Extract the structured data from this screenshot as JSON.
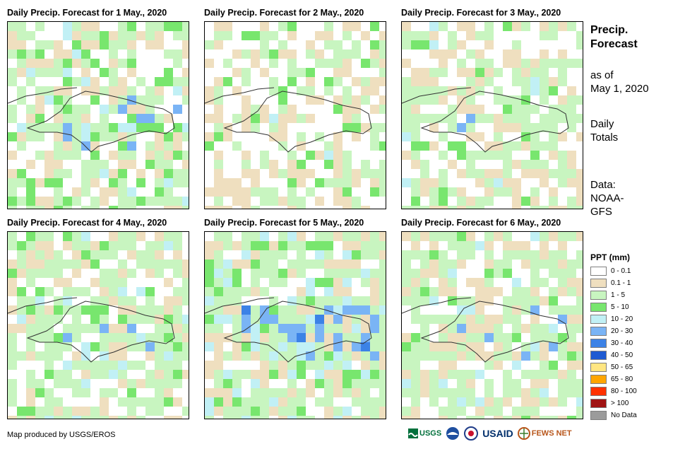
{
  "panels": [
    {
      "title": "Daily Precip. Forecast for 1 May., 2020"
    },
    {
      "title": "Daily Precip. Forecast for 2 May., 2020"
    },
    {
      "title": "Daily Precip. Forecast for 3 May., 2020"
    },
    {
      "title": "Daily Precip. Forecast for 4 May., 2020"
    },
    {
      "title": "Daily Precip. Forecast for 5 May., 2020"
    },
    {
      "title": "Daily Precip. Forecast for 6 May., 2020"
    }
  ],
  "sidebar": {
    "title_line1": "Precip.",
    "title_line2": "Forecast",
    "asof_line1": "as of",
    "asof_line2": "May 1, 2020",
    "totals_line1": "Daily",
    "totals_line2": "Totals",
    "data_line1": "Data:",
    "data_line2": "NOAA-",
    "data_line3": "GFS"
  },
  "legend": {
    "title": "PPT (mm)",
    "items": [
      {
        "label": "0 - 0.1",
        "color": "#ffffff"
      },
      {
        "label": "0.1 - 1",
        "color": "#efdfbf"
      },
      {
        "label": "1 - 5",
        "color": "#c8f5c0"
      },
      {
        "label": "5 - 10",
        "color": "#78e66e"
      },
      {
        "label": "10 - 20",
        "color": "#c1f0f5"
      },
      {
        "label": "20 - 30",
        "color": "#7ab4f5"
      },
      {
        "label": "30 - 40",
        "color": "#3c82e6"
      },
      {
        "label": "40 - 50",
        "color": "#1e5ad2"
      },
      {
        "label": "50 - 65",
        "color": "#ffe682"
      },
      {
        "label": "65 - 80",
        "color": "#ffa500"
      },
      {
        "label": "80 - 100",
        "color": "#ff3200"
      },
      {
        "label": "> 100",
        "color": "#a01414"
      },
      {
        "label": "No Data",
        "color": "#9b9b9b"
      }
    ]
  },
  "footer": {
    "credit": "Map produced by USGS/EROS",
    "logo_usgs": "USGS",
    "logo_usaid": "USAID",
    "logo_fewsnet": "FEWS NET"
  }
}
